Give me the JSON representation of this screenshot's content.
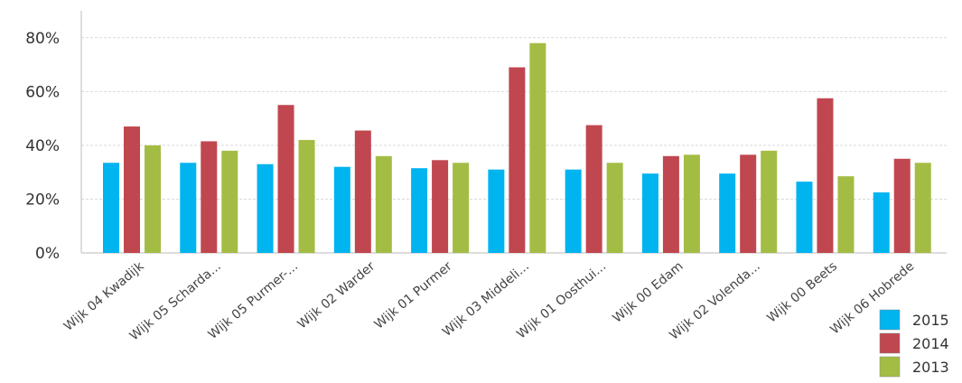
{
  "chart_data": {
    "type": "bar",
    "title": "",
    "xlabel": "",
    "ylabel": "",
    "ylim": [
      0,
      0.9
    ],
    "yticks": [
      "0%",
      "20%",
      "40%",
      "60%",
      "80%"
    ],
    "ytick_values": [
      0,
      0.2,
      0.4,
      0.6,
      0.8
    ],
    "grid": true,
    "legend_position": "bottom-right",
    "categories": [
      "Wijk 04 Kwadijk",
      "Wijk 05 Scharda...",
      "Wijk 05 Purmer-...",
      "Wijk 02 Warder",
      "Wijk 01 Purmer",
      "Wijk 03 Middeli...",
      "Wijk 01 Oosthui...",
      "Wijk 00 Edam",
      "Wijk 02 Volenda...",
      "Wijk 00 Beets",
      "Wijk 06 Hobrede"
    ],
    "series": [
      {
        "name": "2015",
        "color": "#00b4f0",
        "values": [
          0.335,
          0.335,
          0.33,
          0.32,
          0.315,
          0.31,
          0.31,
          0.295,
          0.295,
          0.265,
          0.225
        ]
      },
      {
        "name": "2014",
        "color": "#c0474f",
        "values": [
          0.47,
          0.415,
          0.55,
          0.455,
          0.345,
          0.69,
          0.475,
          0.36,
          0.365,
          0.575,
          0.35
        ]
      },
      {
        "name": "2013",
        "color": "#a3bd44",
        "values": [
          0.4,
          0.38,
          0.42,
          0.36,
          0.335,
          0.78,
          0.335,
          0.365,
          0.38,
          0.285,
          0.335
        ]
      }
    ]
  }
}
